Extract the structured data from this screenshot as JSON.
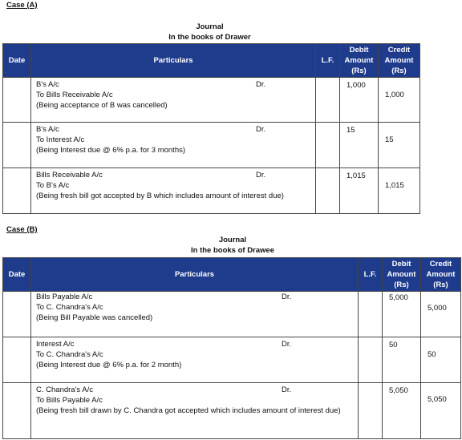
{
  "sections": [
    {
      "case_label": "Case (A)",
      "journal_title": "Journal",
      "journal_subtitle": "In the books of Drawer",
      "headers": {
        "date": "Date",
        "particulars": "Particulars",
        "lf": "L.F.",
        "debit": [
          "Debit",
          "Amount",
          "(Rs)"
        ],
        "credit": [
          "Credit",
          "Amount",
          "(Rs)"
        ]
      },
      "entries": [
        {
          "lines": [
            "B's A/c",
            "To Bills Receivable A/c",
            "(Being acceptance of B was cancelled)"
          ],
          "dr": "Dr.",
          "debit": "1,000",
          "credit": "1,000"
        },
        {
          "lines": [
            "B's A/c",
            "To Interest A/c",
            "(Being Interest due @ 6% p.a. for 3 months)"
          ],
          "dr": "Dr.",
          "debit": "15",
          "credit": "15"
        },
        {
          "lines": [
            "Bills Receivable A/c",
            "To B's A/c",
            "(Being fresh bill got accepted by B which includes amount of interest due)"
          ],
          "dr": "Dr.",
          "debit": "1,015",
          "credit": "1,015"
        }
      ]
    },
    {
      "case_label": "Case (B)",
      "journal_title": "Journal",
      "journal_subtitle": "In the books of Drawee",
      "headers": {
        "date": "Date",
        "particulars": "Particulars",
        "lf": "L.F.",
        "debit": [
          "Debit",
          "Amount",
          "(Rs)"
        ],
        "credit": [
          "Credit",
          "Amount",
          "(Rs)"
        ]
      },
      "entries": [
        {
          "lines": [
            "Bills Payable A/c",
            "To C. Chandra's A/c",
            "(Being Bill Payable was cancelled)"
          ],
          "dr": "Dr.",
          "debit": "5,000",
          "credit": "5,000"
        },
        {
          "lines": [
            "Interest A/c",
            "To C. Chandra's A/c",
            "(Being Interest due @ 6% p.a. for 2 month)"
          ],
          "dr": "Dr.",
          "debit": "50",
          "credit": "50"
        },
        {
          "lines": [
            "C. Chandra's A/c",
            "To Bills Payable A/c",
            "(Being fresh bill drawn by C. Chandra got accepted which includes amount of interest due)"
          ],
          "dr": "Dr.",
          "debit": "5,050",
          "credit": "5,050"
        }
      ]
    }
  ]
}
